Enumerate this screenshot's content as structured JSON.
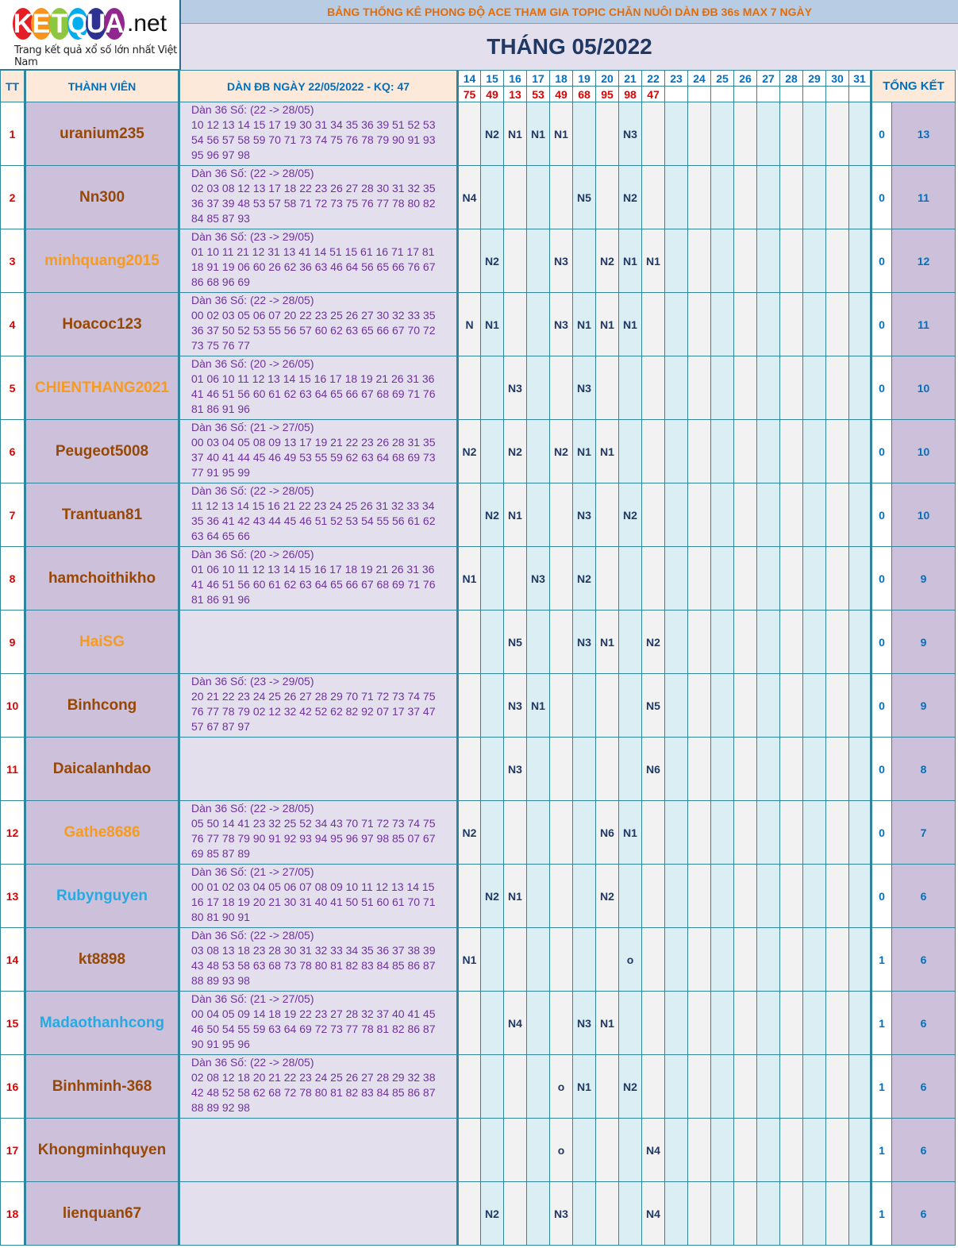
{
  "logo": {
    "letters": [
      "K",
      "E",
      "T",
      "Q",
      "U",
      "A"
    ],
    "suffix": ".net",
    "tagline": "Trang kết quả xổ số lớn nhất Việt Nam"
  },
  "banner_title": "BẢNG THỐNG KÊ PHONG ĐỘ ACE THAM GIA TOPIC CHĂN NUÔI DÀN ĐB 36s MAX 7 NGÀY",
  "month_title": "THÁNG 05/2022",
  "header": {
    "tt": "TT",
    "member": "THÀNH VIÊN",
    "dan": "DÀN ĐB NGÀY 22/05/2022 - KQ: 47",
    "total": "TỔNG KẾT",
    "days": [
      "14",
      "15",
      "16",
      "17",
      "18",
      "19",
      "20",
      "21",
      "22",
      "23",
      "24",
      "25",
      "26",
      "27",
      "28",
      "29",
      "30",
      "31"
    ],
    "results": [
      "75",
      "49",
      "13",
      "53",
      "49",
      "68",
      "95",
      "98",
      "47",
      "",
      "",
      "",
      "",
      "",
      "",
      "",
      "",
      ""
    ]
  },
  "colors": {
    "brown": "#974806",
    "orange": "#f79b20",
    "blue": "#29a9e1"
  },
  "rows": [
    {
      "tt": "1",
      "name": "uranium235",
      "color": "brown",
      "dan_head": "Dàn 36 Số: (22 -> 28/05)",
      "dan_nums": "10 12 13 14 15 17 19 30 31 34 35 36 39 51 52 53 54 56 57 58 59 70 71 73 74 75 76 78 79 90 91 93 95 96 97 98",
      "marks": [
        "",
        "N2",
        "N1",
        "N1",
        "N1",
        "",
        "",
        "N3",
        "",
        "",
        "",
        "",
        "",
        "",
        "",
        "",
        "",
        ""
      ],
      "a": "0",
      "total": "13"
    },
    {
      "tt": "2",
      "name": "Nn300",
      "color": "brown",
      "dan_head": "Dàn 36 Số: (22 -> 28/05)",
      "dan_nums": "02 03 08 12 13 17 18 22 23 26 27 28 30 31 32 35 36 37 39 48 53 57 58 71 72 73 75 76 77 78 80 82 84 85 87 93",
      "marks": [
        "N4",
        "",
        "",
        "",
        "",
        "N5",
        "",
        "N2",
        "",
        "",
        "",
        "",
        "",
        "",
        "",
        "",
        "",
        ""
      ],
      "a": "0",
      "total": "11"
    },
    {
      "tt": "3",
      "name": "minhquang2015",
      "color": "orange",
      "dan_head": "Dàn 36 Số: (23 -> 29/05)",
      "dan_nums": "01 10 11 21 12 31 13 41 14 51 15 61 16 71 17 81 18 91 19 06 60 26 62 36 63 46 64 56 65 66 76 67 86 68 96 69",
      "marks": [
        "",
        "N2",
        "",
        "",
        "N3",
        "",
        "N2",
        "N1",
        "N1",
        "",
        "",
        "",
        "",
        "",
        "",
        "",
        "",
        ""
      ],
      "a": "0",
      "total": "12"
    },
    {
      "tt": "4",
      "name": "Hoacoc123",
      "color": "brown",
      "dan_head": "Dàn 36 Số: (22 -> 28/05)",
      "dan_nums": "00 02 03 05 06 07 20 22 23 25 26 27 30 32 33 35 36 37 50 52 53 55 56 57 60 62 63 65 66 67 70 72 73 75 76 77",
      "marks": [
        "N",
        "N1",
        "",
        "",
        "N3",
        "N1",
        "N1",
        "N1",
        "",
        "",
        "",
        "",
        "",
        "",
        "",
        "",
        "",
        ""
      ],
      "a": "0",
      "total": "11"
    },
    {
      "tt": "5",
      "name": "CHIENTHANG2021",
      "color": "orange",
      "dan_head": "Dàn 36 Số: (20 -> 26/05)",
      "dan_nums": "01 06 10 11 12 13 14 15 16 17 18 19 21 26 31 36 41 46 51 56 60 61 62 63 64 65 66 67 68 69 71 76 81 86 91 96",
      "marks": [
        "",
        "",
        "N3",
        "",
        "",
        "N3",
        "",
        "",
        "",
        "",
        "",
        "",
        "",
        "",
        "",
        "",
        "",
        ""
      ],
      "a": "0",
      "total": "10"
    },
    {
      "tt": "6",
      "name": "Peugeot5008",
      "color": "brown",
      "dan_head": "Dàn 36 Số: (21 -> 27/05)",
      "dan_nums": "00 03 04 05 08 09 13 17 19 21 22 23 26 28 31 35 37 40 41 44 45 46 49 53 55 59 62 63 64 68 69 73 77 91 95 99",
      "marks": [
        "N2",
        "",
        "N2",
        "",
        "N2",
        "N1",
        "N1",
        "",
        "",
        "",
        "",
        "",
        "",
        "",
        "",
        "",
        "",
        ""
      ],
      "a": "0",
      "total": "10"
    },
    {
      "tt": "7",
      "name": "Trantuan81",
      "color": "brown",
      "dan_head": "Dàn 36 Số: (22 -> 28/05)",
      "dan_nums": "11 12 13 14 15 16 21 22 23 24 25 26 31 32 33 34 35 36 41 42 43 44 45 46 51 52 53 54 55 56 61 62 63 64 65 66",
      "marks": [
        "",
        "N2",
        "N1",
        "",
        "",
        "N3",
        "",
        "N2",
        "",
        "",
        "",
        "",
        "",
        "",
        "",
        "",
        "",
        ""
      ],
      "a": "0",
      "total": "10"
    },
    {
      "tt": "8",
      "name": "hamchoithikho",
      "color": "brown",
      "dan_head": "Dàn 36 Số: (20 -> 26/05)",
      "dan_nums": "01 06 10 11 12 13 14 15 16 17 18 19 21 26 31 36 41 46 51 56 60 61 62 63 64 65 66 67 68 69 71 76 81 86 91 96",
      "marks": [
        "N1",
        "",
        "",
        "N3",
        "",
        "N2",
        "",
        "",
        "",
        "",
        "",
        "",
        "",
        "",
        "",
        "",
        "",
        ""
      ],
      "a": "0",
      "total": "9"
    },
    {
      "tt": "9",
      "name": "HaiSG",
      "color": "orange",
      "dan_head": "",
      "dan_nums": "",
      "marks": [
        "",
        "",
        "N5",
        "",
        "",
        "N3",
        "N1",
        "",
        "N2",
        "",
        "",
        "",
        "",
        "",
        "",
        "",
        "",
        ""
      ],
      "a": "0",
      "total": "9"
    },
    {
      "tt": "10",
      "name": "Binhcong",
      "color": "brown",
      "dan_head": "Dàn 36 Số: (23 -> 29/05)",
      "dan_nums": "20 21 22 23 24 25 26 27 28 29 70 71 72 73 74 75 76 77 78 79 02 12 32 42 52 62 82 92 07 17 37 47 57 67 87 97",
      "marks": [
        "",
        "",
        "N3",
        "N1",
        "",
        "",
        "",
        "",
        "N5",
        "",
        "",
        "",
        "",
        "",
        "",
        "",
        "",
        ""
      ],
      "a": "0",
      "total": "9"
    },
    {
      "tt": "11",
      "name": "Daicalanhdao",
      "color": "brown",
      "dan_head": "",
      "dan_nums": "",
      "marks": [
        "",
        "",
        "N3",
        "",
        "",
        "",
        "",
        "",
        "N6",
        "",
        "",
        "",
        "",
        "",
        "",
        "",
        "",
        ""
      ],
      "a": "0",
      "total": "8"
    },
    {
      "tt": "12",
      "name": "Gathe8686",
      "color": "orange",
      "dan_head": "Dàn 36 Số: (22 -> 28/05)",
      "dan_nums": "05 50 14 41 23 32 25 52 34 43 70 71 72 73 74 75 76 77 78 79 90 91 92 93 94 95 96 97 98 85 07 67 69 85 87 89",
      "marks": [
        "N2",
        "",
        "",
        "",
        "",
        "",
        "N6",
        "N1",
        "",
        "",
        "",
        "",
        "",
        "",
        "",
        "",
        "",
        ""
      ],
      "a": "0",
      "total": "7"
    },
    {
      "tt": "13",
      "name": "Rubynguyen",
      "color": "blue",
      "dan_head": "Dàn 36 Số: (21 -> 27/05)",
      "dan_nums": "00 01 02 03 04 05 06 07 08 09 10 11 12 13 14 15 16 17 18 19 20 21 30 31 40 41 50 51 60 61 70 71 80 81 90 91",
      "marks": [
        "",
        "N2",
        "N1",
        "",
        "",
        "",
        "N2",
        "",
        "",
        "",
        "",
        "",
        "",
        "",
        "",
        "",
        "",
        ""
      ],
      "a": "0",
      "total": "6"
    },
    {
      "tt": "14",
      "name": "kt8898",
      "color": "brown",
      "dan_head": "Dàn 36 Số: (22 -> 28/05)",
      "dan_nums": "03 08 13 18 23 28 30 31 32 33 34 35 36 37 38 39 43 48 53 58 63 68 73 78 80 81 82 83 84 85 86 87 88 89 93 98",
      "marks": [
        "N1",
        "",
        "",
        "",
        "",
        "",
        "",
        "o",
        "",
        "",
        "",
        "",
        "",
        "",
        "",
        "",
        "",
        ""
      ],
      "a": "1",
      "total": "6"
    },
    {
      "tt": "15",
      "name": "Madaothanhcong",
      "color": "blue",
      "dan_head": "Dàn 36 Số: (21 -> 27/05)",
      "dan_nums": "00 04 05 09 14 18 19 22 23 27 28 32 37 40 41 45 46 50 54 55 59 63 64 69 72 73 77 78 81 82 86 87 90 91 95 96",
      "marks": [
        "",
        "",
        "N4",
        "",
        "",
        "N3",
        "N1",
        "",
        "",
        "",
        "",
        "",
        "",
        "",
        "",
        "",
        "",
        ""
      ],
      "a": "1",
      "total": "6"
    },
    {
      "tt": "16",
      "name": "Binhminh-368",
      "color": "brown",
      "dan_head": "Dàn 36 Số: (22 -> 28/05)",
      "dan_nums": "02 08 12 18 20 21 22 23 24 25 26 27 28 29 32 38 42 48 52 58 62 68 72 78 80 81 82 83 84 85 86 87 88 89 92 98",
      "marks": [
        "",
        "",
        "",
        "",
        "o",
        "N1",
        "",
        "N2",
        "",
        "",
        "",
        "",
        "",
        "",
        "",
        "",
        "",
        ""
      ],
      "a": "1",
      "total": "6"
    },
    {
      "tt": "17",
      "name": "Khongminhquyen",
      "color": "brown",
      "dan_head": "",
      "dan_nums": "",
      "marks": [
        "",
        "",
        "",
        "",
        "o",
        "",
        "",
        "",
        "N4",
        "",
        "",
        "",
        "",
        "",
        "",
        "",
        "",
        ""
      ],
      "a": "1",
      "total": "6"
    },
    {
      "tt": "18",
      "name": "lienquan67",
      "color": "brown",
      "dan_head": "",
      "dan_nums": "",
      "marks": [
        "",
        "N2",
        "",
        "",
        "N3",
        "",
        "",
        "",
        "N4",
        "",
        "",
        "",
        "",
        "",
        "",
        "",
        "",
        ""
      ],
      "a": "1",
      "total": "6"
    }
  ]
}
